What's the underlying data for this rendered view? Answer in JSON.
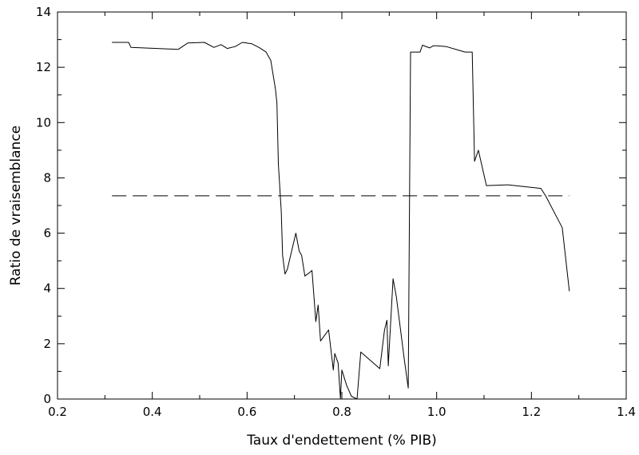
{
  "chart_data": {
    "type": "line",
    "title": "",
    "xlabel": "Taux d'endettement (% PIB)",
    "ylabel": "Ratio de vraisemblance",
    "xlim": [
      0.2,
      1.4
    ],
    "ylim": [
      0,
      14
    ],
    "x_ticks": [
      0.2,
      0.4,
      0.6,
      0.8,
      1.0,
      1.2,
      1.4
    ],
    "x_tick_labels": [
      "0.2",
      "0.4",
      "0.6",
      "0.8",
      "1.0",
      "1.2",
      "1.4"
    ],
    "y_ticks": [
      0,
      2,
      4,
      6,
      8,
      10,
      12,
      14
    ],
    "y_tick_labels": [
      "0",
      "2",
      "4",
      "6",
      "8",
      "10",
      "12",
      "14"
    ],
    "grid": false,
    "series": [
      {
        "style": "solid",
        "color": "#000000",
        "points": [
          [
            0.315,
            12.9
          ],
          [
            0.35,
            12.9
          ],
          [
            0.355,
            12.72
          ],
          [
            0.455,
            12.65
          ],
          [
            0.475,
            12.88
          ],
          [
            0.51,
            12.9
          ],
          [
            0.53,
            12.72
          ],
          [
            0.545,
            12.82
          ],
          [
            0.558,
            12.68
          ],
          [
            0.575,
            12.75
          ],
          [
            0.59,
            12.9
          ],
          [
            0.61,
            12.85
          ],
          [
            0.625,
            12.72
          ],
          [
            0.64,
            12.55
          ],
          [
            0.65,
            12.25
          ],
          [
            0.66,
            11.2
          ],
          [
            0.663,
            10.7
          ],
          [
            0.666,
            8.5
          ],
          [
            0.672,
            6.8
          ],
          [
            0.675,
            5.2
          ],
          [
            0.68,
            4.52
          ],
          [
            0.685,
            4.7
          ],
          [
            0.703,
            6.0
          ],
          [
            0.71,
            5.35
          ],
          [
            0.715,
            5.2
          ],
          [
            0.722,
            4.45
          ],
          [
            0.73,
            4.55
          ],
          [
            0.737,
            4.65
          ],
          [
            0.745,
            2.8
          ],
          [
            0.75,
            3.4
          ],
          [
            0.755,
            2.1
          ],
          [
            0.772,
            2.5
          ],
          [
            0.782,
            1.05
          ],
          [
            0.785,
            1.65
          ],
          [
            0.792,
            1.3
          ],
          [
            0.797,
            0.02
          ],
          [
            0.8,
            1.05
          ],
          [
            0.81,
            0.5
          ],
          [
            0.82,
            0.1
          ],
          [
            0.832,
            0.0
          ],
          [
            0.84,
            1.7
          ],
          [
            0.88,
            1.1
          ],
          [
            0.89,
            2.5
          ],
          [
            0.895,
            2.85
          ],
          [
            0.898,
            1.2
          ],
          [
            0.908,
            4.35
          ],
          [
            0.915,
            3.7
          ],
          [
            0.932,
            1.4
          ],
          [
            0.94,
            0.4
          ],
          [
            0.945,
            12.55
          ],
          [
            0.965,
            12.55
          ],
          [
            0.97,
            12.8
          ],
          [
            0.985,
            12.7
          ],
          [
            0.993,
            12.78
          ],
          [
            1.0,
            12.78
          ],
          [
            1.02,
            12.75
          ],
          [
            1.05,
            12.6
          ],
          [
            1.06,
            12.55
          ],
          [
            1.075,
            12.55
          ],
          [
            1.08,
            8.6
          ],
          [
            1.088,
            9.0
          ],
          [
            1.105,
            7.72
          ],
          [
            1.15,
            7.75
          ],
          [
            1.22,
            7.62
          ],
          [
            1.23,
            7.35
          ],
          [
            1.265,
            6.2
          ],
          [
            1.28,
            3.9
          ]
        ]
      },
      {
        "style": "dashed",
        "color": "#000000",
        "points": [
          [
            0.315,
            7.35
          ],
          [
            1.28,
            7.35
          ]
        ]
      }
    ]
  }
}
